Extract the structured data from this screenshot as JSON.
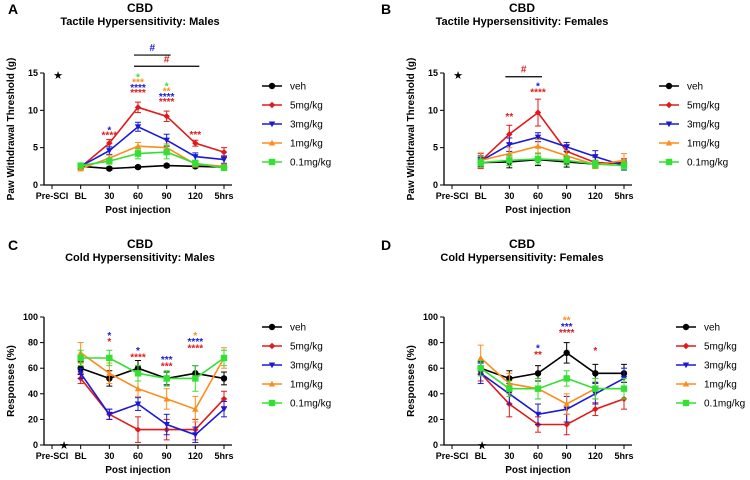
{
  "colors": {
    "veh": "#000000",
    "5mg/kg": "#e01a1a",
    "3mg/kg": "#1a1ad6",
    "1mg/kg": "#ff8c1a",
    "0.1mg/kg": "#33e033"
  },
  "chart_data": [
    {
      "type": "line",
      "panel": "A",
      "title": "CBD",
      "subtitle": "Tactile Hypersensitivity: Males",
      "xlabel": "Post injection",
      "ylabel": "Paw Withdrawal Threshold (g)",
      "categories": [
        "Pre-SCI",
        "BL",
        "30",
        "60",
        "90",
        "120",
        "5hrs"
      ],
      "ylim": [
        0,
        15
      ],
      "yticks": [
        0,
        5,
        10,
        15
      ],
      "corner_mark": "★",
      "series": [
        {
          "name": "veh",
          "values": [
            null,
            2.5,
            2.2,
            2.4,
            2.6,
            2.5,
            2.4
          ],
          "errors": [
            null,
            0.2,
            0.2,
            0.2,
            0.2,
            0.2,
            0.2
          ],
          "marker": "circle"
        },
        {
          "name": "5mg/kg",
          "values": [
            null,
            2.4,
            5.6,
            10.4,
            9.2,
            5.6,
            4.4
          ],
          "errors": [
            null,
            0.3,
            0.5,
            0.7,
            0.7,
            0.4,
            0.6
          ],
          "marker": "diamond"
        },
        {
          "name": "3mg/kg",
          "values": [
            null,
            2.5,
            4.6,
            7.8,
            6.0,
            3.8,
            3.4
          ],
          "errors": [
            null,
            0.3,
            0.5,
            0.6,
            0.8,
            0.5,
            0.5
          ],
          "marker": "tri-down"
        },
        {
          "name": "1mg/kg",
          "values": [
            null,
            2.2,
            3.6,
            5.2,
            5.0,
            2.8,
            2.5
          ],
          "errors": [
            null,
            0.3,
            0.4,
            0.5,
            0.5,
            0.4,
            0.3
          ],
          "marker": "tri-up"
        },
        {
          "name": "0.1mg/kg",
          "values": [
            null,
            2.6,
            3.2,
            4.2,
            4.4,
            2.9,
            2.3
          ],
          "errors": [
            null,
            0.3,
            0.4,
            0.7,
            0.9,
            0.4,
            0.3
          ],
          "marker": "square"
        }
      ],
      "annotations": [
        {
          "text": "*",
          "x": "30",
          "y": 6.9,
          "color": "3mg/kg"
        },
        {
          "text": "****",
          "x": "30",
          "y": 6.2,
          "color": "5mg/kg"
        },
        {
          "text": "*",
          "x": "60",
          "y": 14.0,
          "color": "0.1mg/kg"
        },
        {
          "text": "***",
          "x": "60",
          "y": 13.3,
          "color": "1mg/kg"
        },
        {
          "text": "****",
          "x": "60",
          "y": 12.6,
          "color": "3mg/kg"
        },
        {
          "text": "****",
          "x": "60",
          "y": 11.9,
          "color": "5mg/kg"
        },
        {
          "text": "*",
          "x": "90",
          "y": 12.8,
          "color": "0.1mg/kg"
        },
        {
          "text": "**",
          "x": "90",
          "y": 12.1,
          "color": "1mg/kg"
        },
        {
          "text": "****",
          "x": "90",
          "y": 11.4,
          "color": "3mg/kg"
        },
        {
          "text": "****",
          "x": "90",
          "y": 10.7,
          "color": "5mg/kg"
        },
        {
          "text": "***",
          "x": "120",
          "y": 6.3,
          "color": "5mg/kg"
        }
      ],
      "brackets": [
        {
          "text": "#",
          "from": "60",
          "to": "90",
          "y": 17.4,
          "color": "3mg/kg"
        },
        {
          "text": "#",
          "from": "60",
          "to": "120",
          "y": 15.9,
          "color": "5mg/kg"
        }
      ]
    },
    {
      "type": "line",
      "panel": "B",
      "title": "CBD",
      "subtitle": "Tactile Hypersensitivity: Females",
      "xlabel": "Post injection",
      "ylabel": "Paw Withdrawal Threshold (g)",
      "categories": [
        "Pre-SCI",
        "BL",
        "30",
        "60",
        "90",
        "120",
        "5hrs"
      ],
      "ylim": [
        0,
        15
      ],
      "yticks": [
        0,
        5,
        10,
        15
      ],
      "corner_mark": "★",
      "series": [
        {
          "name": "veh",
          "values": [
            null,
            3.0,
            3.1,
            3.4,
            3.1,
            2.8,
            3.0
          ],
          "errors": [
            null,
            0.7,
            0.8,
            0.8,
            0.7,
            0.5,
            0.5
          ],
          "marker": "circle"
        },
        {
          "name": "5mg/kg",
          "values": [
            null,
            3.2,
            6.8,
            9.7,
            4.5,
            3.0,
            2.9
          ],
          "errors": [
            null,
            1.0,
            1.2,
            1.8,
            0.9,
            0.7,
            0.6
          ],
          "marker": "diamond"
        },
        {
          "name": "3mg/kg",
          "values": [
            null,
            3.2,
            5.4,
            6.4,
            5.1,
            3.8,
            2.6
          ],
          "errors": [
            null,
            0.7,
            0.9,
            0.6,
            0.6,
            0.8,
            0.6
          ],
          "marker": "tri-down"
        },
        {
          "name": "1mg/kg",
          "values": [
            null,
            3.3,
            4.2,
            5.2,
            3.9,
            2.7,
            3.3
          ],
          "errors": [
            null,
            1.0,
            0.8,
            0.9,
            0.7,
            0.5,
            0.9
          ],
          "marker": "tri-up"
        },
        {
          "name": "0.1mg/kg",
          "values": [
            null,
            3.0,
            3.3,
            3.5,
            3.3,
            2.8,
            2.6
          ],
          "errors": [
            null,
            0.6,
            0.7,
            0.7,
            0.6,
            0.5,
            0.5
          ],
          "marker": "square"
        }
      ],
      "annotations": [
        {
          "text": "**",
          "x": "30",
          "y": 8.7,
          "color": "5mg/kg"
        },
        {
          "text": "*",
          "x": "60",
          "y": 12.8,
          "color": "3mg/kg"
        },
        {
          "text": "****",
          "x": "60",
          "y": 12.0,
          "color": "5mg/kg"
        }
      ],
      "brackets": [
        {
          "text": "#",
          "from": "30",
          "to": "60",
          "y": 14.5,
          "color": "5mg/kg"
        }
      ]
    },
    {
      "type": "line",
      "panel": "C",
      "title": "CBD",
      "subtitle": "Cold Hypersensitivity: Males",
      "xlabel": "Post injection",
      "ylabel": "Responses (%)",
      "categories": [
        "Pre-SCI",
        "BL",
        "30",
        "60",
        "90",
        "120",
        "5hrs"
      ],
      "ylim": [
        0,
        100
      ],
      "yticks": [
        0,
        20,
        40,
        60,
        80,
        100
      ],
      "corner_mark": "★",
      "series": [
        {
          "name": "veh",
          "values": [
            null,
            60,
            52,
            60,
            52,
            56,
            52
          ],
          "errors": [
            null,
            5,
            6,
            6,
            5,
            6,
            5
          ],
          "marker": "circle"
        },
        {
          "name": "5mg/kg",
          "values": [
            null,
            52,
            24,
            12,
            12,
            12,
            36
          ],
          "errors": [
            null,
            4,
            4,
            10,
            8,
            8,
            6
          ],
          "marker": "diamond"
        },
        {
          "name": "3mg/kg",
          "values": [
            null,
            56,
            24,
            32,
            16,
            8,
            28
          ],
          "errors": [
            null,
            4,
            4,
            5,
            8,
            6,
            6
          ],
          "marker": "tri-down"
        },
        {
          "name": "1mg/kg",
          "values": [
            null,
            72,
            56,
            44,
            36,
            28,
            68
          ],
          "errors": [
            null,
            8,
            8,
            6,
            8,
            10,
            8
          ],
          "marker": "tri-up"
        },
        {
          "name": "0.1mg/kg",
          "values": [
            null,
            68,
            68,
            56,
            52,
            52,
            68
          ],
          "errors": [
            null,
            6,
            6,
            6,
            6,
            10,
            6
          ],
          "marker": "square"
        }
      ],
      "annotations": [
        {
          "text": "*",
          "x": "30",
          "y": 83,
          "color": "3mg/kg"
        },
        {
          "text": "*",
          "x": "30",
          "y": 78,
          "color": "5mg/kg"
        },
        {
          "text": "*",
          "x": "60",
          "y": 71,
          "color": "3mg/kg"
        },
        {
          "text": "****",
          "x": "60",
          "y": 66,
          "color": "5mg/kg"
        },
        {
          "text": "***",
          "x": "90",
          "y": 64,
          "color": "3mg/kg"
        },
        {
          "text": "***",
          "x": "90",
          "y": 59,
          "color": "5mg/kg"
        },
        {
          "text": "*",
          "x": "120",
          "y": 83,
          "color": "1mg/kg"
        },
        {
          "text": "****",
          "x": "120",
          "y": 78,
          "color": "3mg/kg"
        },
        {
          "text": "****",
          "x": "120",
          "y": 73,
          "color": "5mg/kg"
        }
      ],
      "brackets": []
    },
    {
      "type": "line",
      "panel": "D",
      "title": "CBD",
      "subtitle": "Cold Hypersensitivity: Females",
      "xlabel": "Post injection",
      "ylabel": "Responses (%)",
      "categories": [
        "Pre-SCI",
        "BL",
        "30",
        "60",
        "90",
        "120",
        "5hrs"
      ],
      "ylim": [
        0,
        100
      ],
      "yticks": [
        0,
        20,
        40,
        60,
        80,
        100
      ],
      "corner_mark": "★",
      "series": [
        {
          "name": "veh",
          "values": [
            null,
            60,
            52,
            56,
            72,
            56,
            56
          ],
          "errors": [
            null,
            5,
            6,
            6,
            8,
            7,
            7
          ],
          "marker": "circle"
        },
        {
          "name": "5mg/kg",
          "values": [
            null,
            56,
            32,
            16,
            16,
            28,
            36
          ],
          "errors": [
            null,
            6,
            10,
            6,
            8,
            5,
            8
          ],
          "marker": "diamond"
        },
        {
          "name": "3mg/kg",
          "values": [
            null,
            56,
            40,
            24,
            28,
            40,
            52
          ],
          "errors": [
            null,
            8,
            8,
            8,
            10,
            8,
            8
          ],
          "marker": "tri-down"
        },
        {
          "name": "1mg/kg",
          "values": [
            null,
            68,
            48,
            44,
            32,
            44,
            44
          ],
          "errors": [
            null,
            10,
            8,
            8,
            8,
            8,
            8
          ],
          "marker": "tri-up"
        },
        {
          "name": "0.1mg/kg",
          "values": [
            null,
            60,
            44,
            44,
            52,
            44,
            44
          ],
          "errors": [
            null,
            6,
            6,
            8,
            6,
            8,
            8
          ],
          "marker": "square"
        }
      ],
      "annotations": [
        {
          "text": "*",
          "x": "60",
          "y": 73,
          "color": "3mg/kg"
        },
        {
          "text": "**",
          "x": "60",
          "y": 68,
          "color": "5mg/kg"
        },
        {
          "text": "**",
          "x": "90",
          "y": 95,
          "color": "1mg/kg"
        },
        {
          "text": "***",
          "x": "90",
          "y": 90,
          "color": "3mg/kg"
        },
        {
          "text": "****",
          "x": "90",
          "y": 85,
          "color": "5mg/kg"
        },
        {
          "text": "*",
          "x": "120",
          "y": 71,
          "color": "5mg/kg"
        }
      ],
      "brackets": []
    }
  ]
}
